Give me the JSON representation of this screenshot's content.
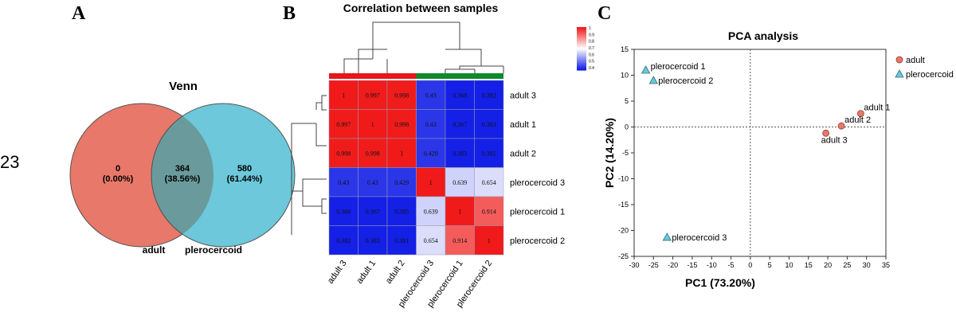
{
  "page_number": "23",
  "panels": {
    "a": "A",
    "b": "B",
    "c": "C"
  },
  "chart_data": [
    {
      "type": "venn",
      "title": "Venn",
      "sets": [
        {
          "name": "adult",
          "color": "#E8786A"
        },
        {
          "name": "plerocercoid",
          "color": "#6CC8DA"
        }
      ],
      "overlap_color": "#6A9A9C",
      "regions": [
        {
          "set": "adult only",
          "count": "0",
          "percent": "(0.00%)"
        },
        {
          "set": "both",
          "count": "364",
          "percent": "(38.56%)"
        },
        {
          "set": "plerocercoid only",
          "count": "580",
          "percent": "(61.44%)"
        }
      ]
    },
    {
      "type": "heatmap",
      "title": "Correlation between samples",
      "columns": [
        "adult 3",
        "adult 1",
        "adult 2",
        "plerocercoid 3",
        "plerocercoid 1",
        "plerocercoid 2"
      ],
      "rows": [
        "adult 3",
        "adult 1",
        "adult 2",
        "plerocercoid 3",
        "plerocercoid 1",
        "plerocercoid 2"
      ],
      "row_groups": [
        "adult",
        "adult",
        "adult",
        "plerocercoid",
        "plerocercoid",
        "plerocercoid"
      ],
      "group_colors": {
        "adult": "#E8151A",
        "plerocercoid": "#0E8A2C"
      },
      "values": [
        [
          "1",
          "0.997",
          "0.998",
          "0.43",
          "0.368",
          "0.382"
        ],
        [
          "0.997",
          "1",
          "0.998",
          "0.43",
          "0.367",
          "0.383"
        ],
        [
          "0.998",
          "0.998",
          "1",
          "0.429",
          "0.385",
          "0.381"
        ],
        [
          "0.43",
          "0.43",
          "0.429",
          "1",
          "0.639",
          "0.654"
        ],
        [
          "0.368",
          "0.367",
          "0.385",
          "0.639",
          "1",
          "0.914"
        ],
        [
          "0.382",
          "0.383",
          "0.381",
          "0.654",
          "0.914",
          "1"
        ]
      ],
      "color_scale": {
        "min": 0.4,
        "max": 1,
        "low": "#1420E6",
        "mid": "#FFFFFF",
        "high": "#F01A1A"
      },
      "legend_ticks": [
        "1",
        "0.9",
        "0.8",
        "0.7",
        "0.6",
        "0.5",
        "0.4"
      ]
    },
    {
      "type": "scatter",
      "title": "PCA analysis",
      "xlabel": "PC1 (73.20%)",
      "ylabel": "PC2 (14.20%)",
      "xlim": [
        -30,
        35
      ],
      "ylim": [
        -25,
        15
      ],
      "xticks": [
        "-30",
        "-25",
        "-20",
        "-15",
        "-10",
        "-5",
        "0",
        "5",
        "10",
        "15",
        "20",
        "25",
        "30",
        "35"
      ],
      "yticks": [
        "15",
        "10",
        "5",
        "0",
        "-5",
        "-10",
        "-15",
        "-20",
        "-25"
      ],
      "series": [
        {
          "name": "adult",
          "marker": "circle",
          "color": "#E8786A",
          "points": [
            {
              "label": "adult 1",
              "x": 28.5,
              "y": 2.6
            },
            {
              "label": "adult 2",
              "x": 23.5,
              "y": 0.2
            },
            {
              "label": "adult 3",
              "x": 19.5,
              "y": -1.2
            }
          ]
        },
        {
          "name": "plerocercoid",
          "marker": "triangle",
          "color": "#6CC8DA",
          "points": [
            {
              "label": "plerocercoid 1",
              "x": -27,
              "y": 11
            },
            {
              "label": "plerocercoid 2",
              "x": -25,
              "y": 9
            },
            {
              "label": "plerocercoid 3",
              "x": -21.5,
              "y": -21.3
            }
          ]
        }
      ],
      "legend_position": "top-right"
    }
  ]
}
